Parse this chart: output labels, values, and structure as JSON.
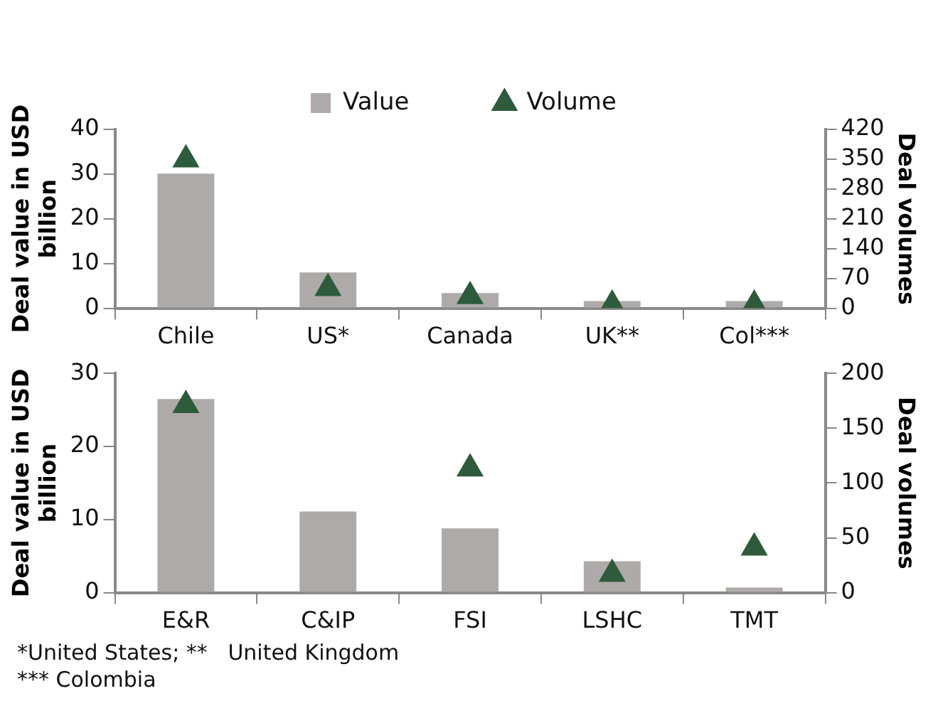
{
  "chart_data": [
    {
      "type": "bar",
      "categories": [
        "Chile",
        "US*",
        "Canada",
        "UK**",
        "Col***"
      ],
      "ylabel": "Deal value in USD billion",
      "y2label": "Deal volumes",
      "ylim": [
        0,
        40
      ],
      "yticks": [
        0,
        10,
        20,
        30,
        40
      ],
      "y2lim": [
        0,
        420
      ],
      "y2ticks": [
        0,
        70,
        140,
        210,
        280,
        350,
        420
      ],
      "grid": false,
      "legend": "top",
      "series": [
        {
          "name": "Value",
          "color": "#aeaaa9",
          "values": [
            30.1,
            8,
            3.4,
            1.6,
            1.6
          ]
        },
        {
          "name": "Volume",
          "type": "scatter",
          "axis": "y2",
          "marker": "triangle",
          "color": "#2e5b3b",
          "values": [
            349,
            47,
            28,
            8,
            8
          ]
        }
      ]
    },
    {
      "type": "bar",
      "categories": [
        "E&R",
        "C&IP",
        "FSI",
        "LSHC",
        "TMT"
      ],
      "ylabel": "Deal value in USD billion",
      "y2label": "Deal volumes",
      "ylim": [
        0,
        30
      ],
      "yticks": [
        0,
        10,
        20,
        30
      ],
      "y2lim": [
        0,
        200
      ],
      "y2ticks": [
        0,
        50,
        100,
        150,
        200
      ],
      "grid": false,
      "legend": false,
      "annotations": [
        "*United States; **   United Kingdom",
        "*** Colombia"
      ],
      "series": [
        {
          "color": "#aeaaa9",
          "values": [
            26.5,
            11.1,
            8.8,
            4.3,
            0.7
          ]
        },
        {
          "type": "scatter",
          "axis": "y2",
          "marker": "triangle",
          "color": "#2e5b3b",
          "values": [
            171,
            null,
            113,
            17,
            41
          ]
        }
      ]
    }
  ]
}
